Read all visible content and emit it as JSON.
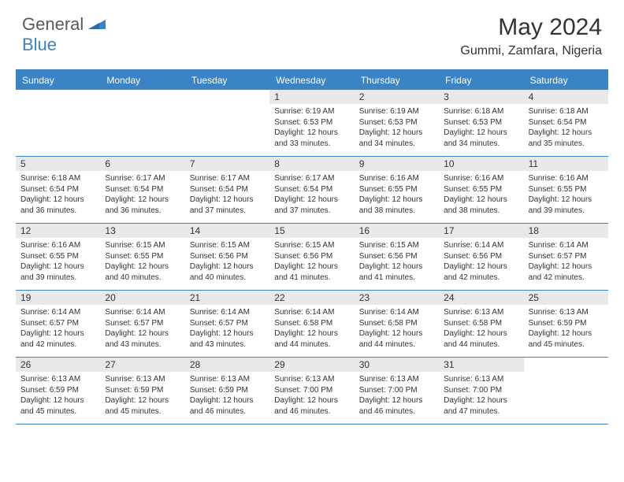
{
  "logo": {
    "text1": "General",
    "text2": "Blue"
  },
  "title": "May 2024",
  "location": "Gummi, Zamfara, Nigeria",
  "colors": {
    "accent": "#3a83c4",
    "header_text": "#ffffff",
    "daynum_bg": "#e9e9e9",
    "text": "#333333",
    "logo_gray": "#5a5a5a"
  },
  "day_headers": [
    "Sunday",
    "Monday",
    "Tuesday",
    "Wednesday",
    "Thursday",
    "Friday",
    "Saturday"
  ],
  "weeks": [
    [
      null,
      null,
      null,
      {
        "n": "1",
        "sunrise": "6:19 AM",
        "sunset": "6:53 PM",
        "dl1": "Daylight: 12 hours",
        "dl2": "and 33 minutes."
      },
      {
        "n": "2",
        "sunrise": "6:19 AM",
        "sunset": "6:53 PM",
        "dl1": "Daylight: 12 hours",
        "dl2": "and 34 minutes."
      },
      {
        "n": "3",
        "sunrise": "6:18 AM",
        "sunset": "6:53 PM",
        "dl1": "Daylight: 12 hours",
        "dl2": "and 34 minutes."
      },
      {
        "n": "4",
        "sunrise": "6:18 AM",
        "sunset": "6:54 PM",
        "dl1": "Daylight: 12 hours",
        "dl2": "and 35 minutes."
      }
    ],
    [
      {
        "n": "5",
        "sunrise": "6:18 AM",
        "sunset": "6:54 PM",
        "dl1": "Daylight: 12 hours",
        "dl2": "and 36 minutes."
      },
      {
        "n": "6",
        "sunrise": "6:17 AM",
        "sunset": "6:54 PM",
        "dl1": "Daylight: 12 hours",
        "dl2": "and 36 minutes."
      },
      {
        "n": "7",
        "sunrise": "6:17 AM",
        "sunset": "6:54 PM",
        "dl1": "Daylight: 12 hours",
        "dl2": "and 37 minutes."
      },
      {
        "n": "8",
        "sunrise": "6:17 AM",
        "sunset": "6:54 PM",
        "dl1": "Daylight: 12 hours",
        "dl2": "and 37 minutes."
      },
      {
        "n": "9",
        "sunrise": "6:16 AM",
        "sunset": "6:55 PM",
        "dl1": "Daylight: 12 hours",
        "dl2": "and 38 minutes."
      },
      {
        "n": "10",
        "sunrise": "6:16 AM",
        "sunset": "6:55 PM",
        "dl1": "Daylight: 12 hours",
        "dl2": "and 38 minutes."
      },
      {
        "n": "11",
        "sunrise": "6:16 AM",
        "sunset": "6:55 PM",
        "dl1": "Daylight: 12 hours",
        "dl2": "and 39 minutes."
      }
    ],
    [
      {
        "n": "12",
        "sunrise": "6:16 AM",
        "sunset": "6:55 PM",
        "dl1": "Daylight: 12 hours",
        "dl2": "and 39 minutes."
      },
      {
        "n": "13",
        "sunrise": "6:15 AM",
        "sunset": "6:55 PM",
        "dl1": "Daylight: 12 hours",
        "dl2": "and 40 minutes."
      },
      {
        "n": "14",
        "sunrise": "6:15 AM",
        "sunset": "6:56 PM",
        "dl1": "Daylight: 12 hours",
        "dl2": "and 40 minutes."
      },
      {
        "n": "15",
        "sunrise": "6:15 AM",
        "sunset": "6:56 PM",
        "dl1": "Daylight: 12 hours",
        "dl2": "and 41 minutes."
      },
      {
        "n": "16",
        "sunrise": "6:15 AM",
        "sunset": "6:56 PM",
        "dl1": "Daylight: 12 hours",
        "dl2": "and 41 minutes."
      },
      {
        "n": "17",
        "sunrise": "6:14 AM",
        "sunset": "6:56 PM",
        "dl1": "Daylight: 12 hours",
        "dl2": "and 42 minutes."
      },
      {
        "n": "18",
        "sunrise": "6:14 AM",
        "sunset": "6:57 PM",
        "dl1": "Daylight: 12 hours",
        "dl2": "and 42 minutes."
      }
    ],
    [
      {
        "n": "19",
        "sunrise": "6:14 AM",
        "sunset": "6:57 PM",
        "dl1": "Daylight: 12 hours",
        "dl2": "and 42 minutes."
      },
      {
        "n": "20",
        "sunrise": "6:14 AM",
        "sunset": "6:57 PM",
        "dl1": "Daylight: 12 hours",
        "dl2": "and 43 minutes."
      },
      {
        "n": "21",
        "sunrise": "6:14 AM",
        "sunset": "6:57 PM",
        "dl1": "Daylight: 12 hours",
        "dl2": "and 43 minutes."
      },
      {
        "n": "22",
        "sunrise": "6:14 AM",
        "sunset": "6:58 PM",
        "dl1": "Daylight: 12 hours",
        "dl2": "and 44 minutes."
      },
      {
        "n": "23",
        "sunrise": "6:14 AM",
        "sunset": "6:58 PM",
        "dl1": "Daylight: 12 hours",
        "dl2": "and 44 minutes."
      },
      {
        "n": "24",
        "sunrise": "6:13 AM",
        "sunset": "6:58 PM",
        "dl1": "Daylight: 12 hours",
        "dl2": "and 44 minutes."
      },
      {
        "n": "25",
        "sunrise": "6:13 AM",
        "sunset": "6:59 PM",
        "dl1": "Daylight: 12 hours",
        "dl2": "and 45 minutes."
      }
    ],
    [
      {
        "n": "26",
        "sunrise": "6:13 AM",
        "sunset": "6:59 PM",
        "dl1": "Daylight: 12 hours",
        "dl2": "and 45 minutes."
      },
      {
        "n": "27",
        "sunrise": "6:13 AM",
        "sunset": "6:59 PM",
        "dl1": "Daylight: 12 hours",
        "dl2": "and 45 minutes."
      },
      {
        "n": "28",
        "sunrise": "6:13 AM",
        "sunset": "6:59 PM",
        "dl1": "Daylight: 12 hours",
        "dl2": "and 46 minutes."
      },
      {
        "n": "29",
        "sunrise": "6:13 AM",
        "sunset": "7:00 PM",
        "dl1": "Daylight: 12 hours",
        "dl2": "and 46 minutes."
      },
      {
        "n": "30",
        "sunrise": "6:13 AM",
        "sunset": "7:00 PM",
        "dl1": "Daylight: 12 hours",
        "dl2": "and 46 minutes."
      },
      {
        "n": "31",
        "sunrise": "6:13 AM",
        "sunset": "7:00 PM",
        "dl1": "Daylight: 12 hours",
        "dl2": "and 47 minutes."
      },
      null
    ]
  ],
  "labels": {
    "sunrise_prefix": "Sunrise: ",
    "sunset_prefix": "Sunset: "
  }
}
